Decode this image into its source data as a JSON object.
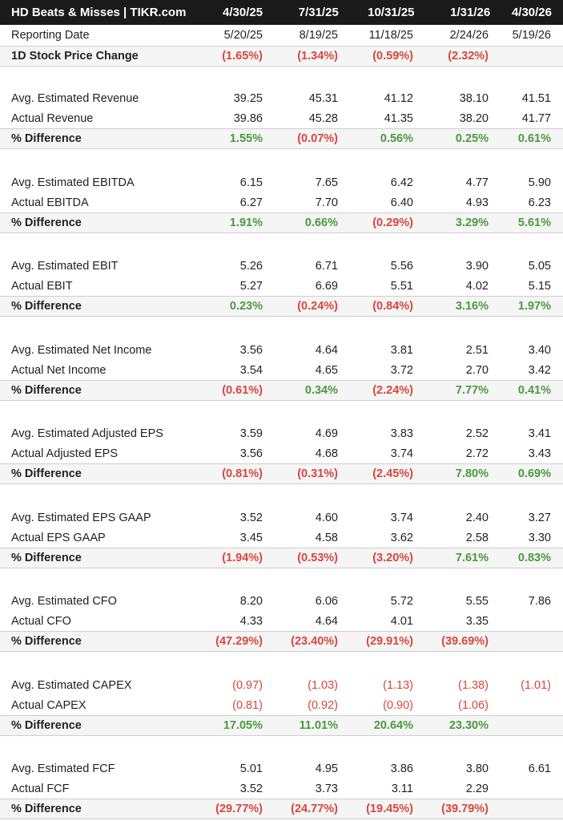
{
  "header": {
    "title": "HD Beats & Misses | TIKR.com",
    "periods": [
      "4/30/25",
      "7/31/25",
      "10/31/25",
      "1/31/26",
      "4/30/26"
    ]
  },
  "reporting": {
    "label": "Reporting Date",
    "values": [
      "5/20/25",
      "8/19/25",
      "11/18/25",
      "2/24/26",
      "5/19/26"
    ]
  },
  "price": {
    "label": "1D Stock Price Change",
    "values": [
      "(1.65%)",
      "(1.34%)",
      "(0.59%)",
      "(2.32%)",
      ""
    ]
  },
  "sections": [
    {
      "est_label": "Avg. Estimated Revenue",
      "est": [
        "39.25",
        "45.31",
        "41.12",
        "38.10",
        "41.51"
      ],
      "act_label": "Actual Revenue",
      "act": [
        "39.86",
        "45.28",
        "41.35",
        "38.20",
        "41.77"
      ],
      "diff_label": "% Difference",
      "diff": [
        "1.55%",
        "(0.07%)",
        "0.56%",
        "0.25%",
        "0.61%"
      ]
    },
    {
      "est_label": "Avg. Estimated EBITDA",
      "est": [
        "6.15",
        "7.65",
        "6.42",
        "4.77",
        "5.90"
      ],
      "act_label": "Actual EBITDA",
      "act": [
        "6.27",
        "7.70",
        "6.40",
        "4.93",
        "6.23"
      ],
      "diff_label": "% Difference",
      "diff": [
        "1.91%",
        "0.66%",
        "(0.29%)",
        "3.29%",
        "5.61%"
      ]
    },
    {
      "est_label": "Avg. Estimated EBIT",
      "est": [
        "5.26",
        "6.71",
        "5.56",
        "3.90",
        "5.05"
      ],
      "act_label": "Actual EBIT",
      "act": [
        "5.27",
        "6.69",
        "5.51",
        "4.02",
        "5.15"
      ],
      "diff_label": "% Difference",
      "diff": [
        "0.23%",
        "(0.24%)",
        "(0.84%)",
        "3.16%",
        "1.97%"
      ]
    },
    {
      "est_label": "Avg. Estimated Net Income",
      "est": [
        "3.56",
        "4.64",
        "3.81",
        "2.51",
        "3.40"
      ],
      "act_label": "Actual Net Income",
      "act": [
        "3.54",
        "4.65",
        "3.72",
        "2.70",
        "3.42"
      ],
      "diff_label": "% Difference",
      "diff": [
        "(0.61%)",
        "0.34%",
        "(2.24%)",
        "7.77%",
        "0.41%"
      ]
    },
    {
      "est_label": "Avg. Estimated Adjusted EPS",
      "est": [
        "3.59",
        "4.69",
        "3.83",
        "2.52",
        "3.41"
      ],
      "act_label": "Actual Adjusted EPS",
      "act": [
        "3.56",
        "4.68",
        "3.74",
        "2.72",
        "3.43"
      ],
      "diff_label": "% Difference",
      "diff": [
        "(0.81%)",
        "(0.31%)",
        "(2.45%)",
        "7.80%",
        "0.69%"
      ]
    },
    {
      "est_label": "Avg. Estimated EPS GAAP",
      "est": [
        "3.52",
        "4.60",
        "3.74",
        "2.40",
        "3.27"
      ],
      "act_label": "Actual EPS GAAP",
      "act": [
        "3.45",
        "4.58",
        "3.62",
        "2.58",
        "3.30"
      ],
      "diff_label": "% Difference",
      "diff": [
        "(1.94%)",
        "(0.53%)",
        "(3.20%)",
        "7.61%",
        "0.83%"
      ]
    },
    {
      "est_label": "Avg. Estimated CFO",
      "est": [
        "8.20",
        "6.06",
        "5.72",
        "5.55",
        "7.86"
      ],
      "act_label": "Actual CFO",
      "act": [
        "4.33",
        "4.64",
        "4.01",
        "3.35",
        ""
      ],
      "diff_label": "% Difference",
      "diff": [
        "(47.29%)",
        "(23.40%)",
        "(29.91%)",
        "(39.69%)",
        ""
      ]
    },
    {
      "est_label": "Avg. Estimated CAPEX",
      "est": [
        "(0.97)",
        "(1.03)",
        "(1.13)",
        "(1.38)",
        "(1.01)"
      ],
      "act_label": "Actual CAPEX",
      "act": [
        "(0.81)",
        "(0.92)",
        "(0.90)",
        "(1.06)",
        ""
      ],
      "diff_label": "% Difference",
      "diff": [
        "17.05%",
        "11.01%",
        "20.64%",
        "23.30%",
        ""
      ]
    },
    {
      "est_label": "Avg. Estimated FCF",
      "est": [
        "5.01",
        "4.95",
        "3.86",
        "3.80",
        "6.61"
      ],
      "act_label": "Actual FCF",
      "act": [
        "3.52",
        "3.73",
        "3.11",
        "2.29",
        ""
      ],
      "diff_label": "% Difference",
      "diff": [
        "(29.77%)",
        "(24.77%)",
        "(19.45%)",
        "(39.79%)",
        ""
      ]
    }
  ],
  "colors": {
    "positive": "#4a9a3c",
    "negative": "#d9463e",
    "header_bg": "#1a1a1a",
    "highlight_row_bg": "#f5f5f5"
  }
}
